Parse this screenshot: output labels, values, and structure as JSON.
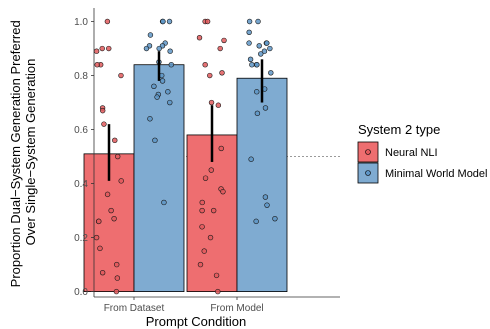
{
  "chart_data": {
    "type": "bar",
    "xlabel": "Prompt Condition",
    "ylabel_lines": [
      "Proportion Dual−System Generation Preferred",
      "Over Single−System Generation"
    ],
    "categories": [
      "From Dataset",
      "From Model"
    ],
    "y_ticks": [
      "0.0",
      "0.2",
      "0.4",
      "0.6",
      "0.8",
      "1.0"
    ],
    "ylim": [
      -0.02,
      1.05
    ],
    "reference_line": 0.5,
    "grid": false,
    "legend": {
      "title": "System 2 type",
      "placement": "right",
      "entries": [
        "Neural NLI",
        "Minimal World Model"
      ]
    },
    "series": [
      {
        "name": "Neural NLI",
        "color": "#ee6e70",
        "point_color": "#e0595c",
        "values": [
          0.51,
          0.58
        ],
        "ci": [
          [
            0.41,
            0.62
          ],
          [
            0.48,
            0.69
          ]
        ],
        "points": [
          [
            1.0,
            0.9,
            0.9,
            0.89,
            0.84,
            0.84,
            0.8,
            0.68,
            0.67,
            0.62,
            0.56,
            0.5,
            0.41,
            0.36,
            0.3,
            0.27,
            0.26,
            0.26,
            0.2,
            0.16,
            0.1,
            0.07,
            0.05,
            0.0
          ],
          [
            1.0,
            1.0,
            0.94,
            0.93,
            0.9,
            0.84,
            0.81,
            0.8,
            0.7,
            0.69,
            0.53,
            0.45,
            0.42,
            0.38,
            0.37,
            0.33,
            0.3,
            0.3,
            0.24,
            0.2,
            0.15,
            0.1,
            0.06,
            0.0
          ]
        ]
      },
      {
        "name": "Minimal World Model",
        "color": "#7fabd1",
        "point_color": "#5e95c6",
        "values": [
          0.84,
          0.79
        ],
        "ci": [
          [
            0.78,
            0.89
          ],
          [
            0.7,
            0.86
          ]
        ],
        "points": [
          [
            1.0,
            1.0,
            1.0,
            0.95,
            0.92,
            0.91,
            0.91,
            0.9,
            0.9,
            0.89,
            0.85,
            0.84,
            0.8,
            0.78,
            0.76,
            0.74,
            0.73,
            0.72,
            0.7,
            0.64,
            0.56,
            0.33
          ],
          [
            1.0,
            1.0,
            0.96,
            0.92,
            0.92,
            0.92,
            0.91,
            0.9,
            0.89,
            0.88,
            0.86,
            0.84,
            0.84,
            0.84,
            0.81,
            0.75,
            0.74,
            0.68,
            0.66,
            0.49,
            0.35,
            0.32,
            0.27,
            0.26
          ]
        ]
      }
    ]
  }
}
